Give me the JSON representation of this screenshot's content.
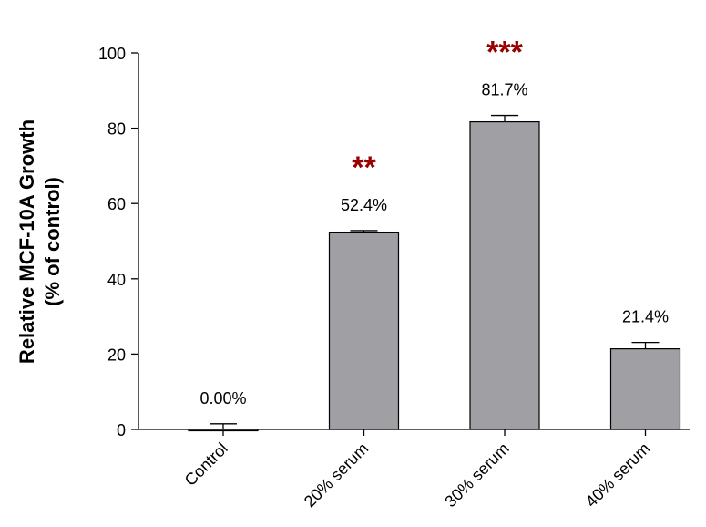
{
  "chart_data": {
    "type": "bar",
    "y_label": [
      "Relative MCF-10A Growth",
      "(% of control)"
    ],
    "categories": [
      "Control",
      "20% serum",
      "30% serum",
      "40% serum"
    ],
    "values": [
      0,
      52.4,
      81.7,
      21.4
    ],
    "value_labels": [
      "0.00%",
      "52.4%",
      "81.7%",
      "21.4%"
    ],
    "errors": [
      1.5,
      0.4,
      1.7,
      1.7
    ],
    "color": "#a09fa4",
    "ylim": [
      0,
      100
    ],
    "yticks": [
      0,
      20,
      40,
      60,
      80,
      100
    ],
    "annotations": [
      {
        "text": "**",
        "category": "20% serum",
        "color": "#990000"
      },
      {
        "text": "***",
        "category": "30% serum",
        "color": "#990000"
      }
    ]
  }
}
